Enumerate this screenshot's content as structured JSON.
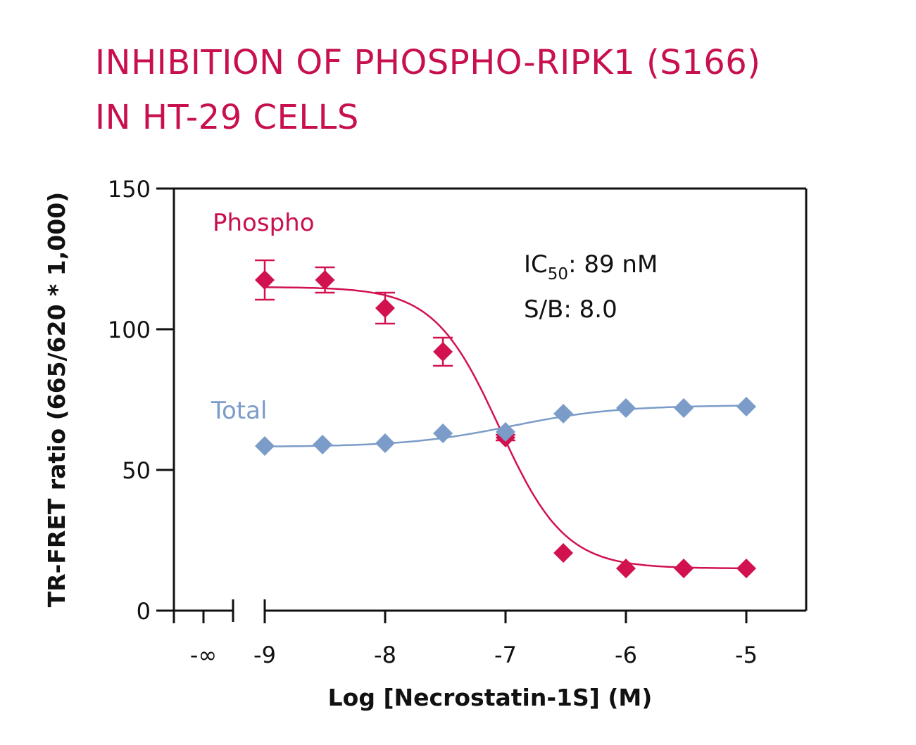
{
  "chart_data": {
    "type": "scatter",
    "title_lines": [
      "INHIBITION OF PHOSPHO-RIPK1 (S166)",
      "IN HT-29 CELLS"
    ],
    "xlabel": "Log [Necrostatin-1S] (M)",
    "ylabel": "TR-FRET ratio (665/620 * 1,000)",
    "xlim": [
      -9,
      -5
    ],
    "ylim": [
      0,
      150
    ],
    "x_ticks": [
      -9,
      -8,
      -7,
      -6,
      -5
    ],
    "x_tick_labels": [
      "-9",
      "-8",
      "-7",
      "-6",
      "-5"
    ],
    "x_break_label": "-∞",
    "y_ticks": [
      0,
      50,
      100,
      150
    ],
    "y_tick_labels": [
      "0",
      "50",
      "100",
      "150"
    ],
    "grid": false,
    "series": [
      {
        "name": "Phospho",
        "color": "#d1124f",
        "x": [
          -9,
          -8.5,
          -8,
          -7.52,
          -7,
          -6.52,
          -6,
          -5.52,
          -5
        ],
        "y": [
          117.5,
          117.5,
          107.5,
          92,
          61.5,
          20.5,
          15,
          15,
          15
        ],
        "err": [
          7,
          4.5,
          5.5,
          5,
          1,
          0,
          0,
          0,
          0
        ],
        "fit": {
          "bottom": 15,
          "top": 115,
          "logIC50": -7.05,
          "hill": -1.6
        }
      },
      {
        "name": "Total",
        "color": "#7b9cc8",
        "x": [
          -9,
          -8.52,
          -8,
          -7.52,
          -7,
          -6.52,
          -6,
          -5.52,
          -5
        ],
        "y": [
          58.5,
          59,
          59.5,
          63,
          63.5,
          70,
          72,
          72,
          72.5
        ],
        "err": [
          0,
          0,
          0,
          0,
          0,
          0,
          0,
          0,
          0
        ],
        "fit": {
          "bottom": 58.2,
          "top": 73,
          "logIC50": -6.95,
          "hill": 1.0
        }
      }
    ],
    "annotations": {
      "ic50_prefix": "IC",
      "ic50_sub": "50",
      "ic50_value": ": 89 nM",
      "sb": "S/B: 8.0"
    }
  }
}
